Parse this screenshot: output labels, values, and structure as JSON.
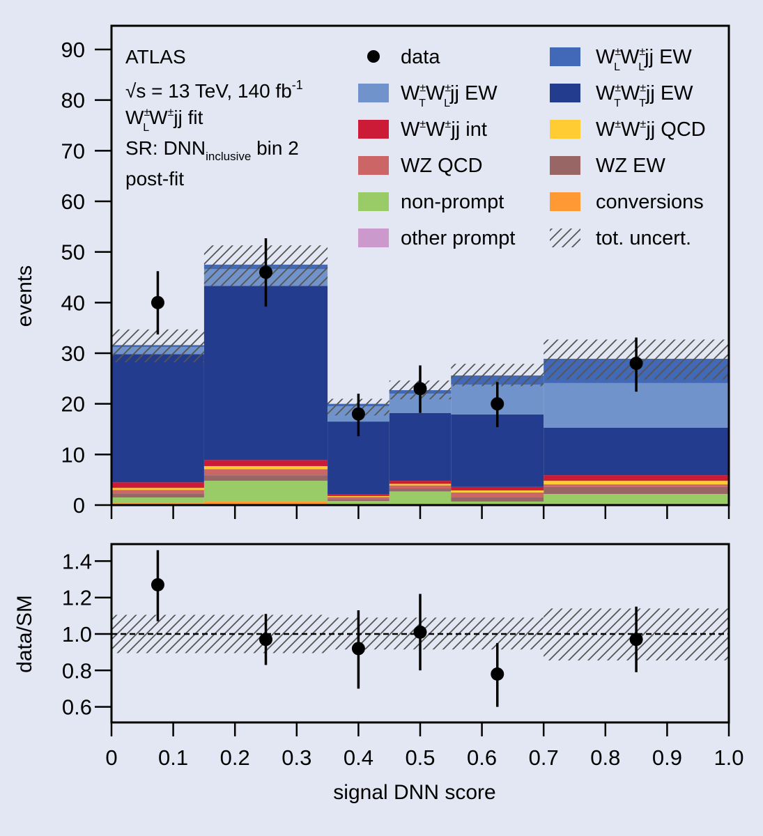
{
  "chart_data": {
    "type": "bar",
    "subtype": "stacked-histogram-with-ratio",
    "xlabel": "signal DNN score",
    "ylabel": "events",
    "ratio_ylabel": "data/SM",
    "xlim": [
      0,
      1.0
    ],
    "ylim": [
      0,
      90
    ],
    "ratio_ylim": [
      0.51,
      1.49
    ],
    "x_ticks": [
      "0",
      "0.1",
      "0.2",
      "0.3",
      "0.4",
      "0.5",
      "0.6",
      "0.7",
      "0.8",
      "0.9",
      "1.0"
    ],
    "y_ticks": [
      "0",
      "10",
      "20",
      "30",
      "40",
      "50",
      "60",
      "70",
      "80",
      "90"
    ],
    "ratio_y_ticks": [
      "0.6",
      "0.8",
      "1.0",
      "1.2",
      "1.4"
    ],
    "bin_edges": [
      0,
      0.15,
      0.35,
      0.45,
      0.55,
      0.7,
      1.0
    ],
    "annotations": {
      "experiment": "ATLAS",
      "energy": "√s = 13 TeV, 140 fb",
      "energy_sup": "-1",
      "fit_main": "W",
      "fit_sub1": "L",
      "fit_sup1": "±",
      "fit_rest": "W",
      "fit_sup2": "±",
      "fit_tail": "jj fit",
      "region_pre": "SR: DNN",
      "region_sub": "inclusive",
      "region_post": " bin 2",
      "stage": "post-fit"
    },
    "legend_position": "top-right",
    "series": [
      {
        "key": "other",
        "name": "other prompt",
        "color": "#cc99cc",
        "values": [
          0.1,
          0.1,
          0.05,
          0.05,
          0.05,
          0.1
        ]
      },
      {
        "key": "conv",
        "name": "conversions",
        "color": "#ff9933",
        "values": [
          0.3,
          0.6,
          0.15,
          0.15,
          0.15,
          0.2
        ]
      },
      {
        "key": "nonprompt",
        "name": "non-prompt",
        "color": "#99cc66",
        "values": [
          1.1,
          4.1,
          0.6,
          2.5,
          0.5,
          1.9
        ]
      },
      {
        "key": "wzew",
        "name": "WZ EW",
        "color": "#996666",
        "values": [
          0.8,
          1.1,
          0.4,
          0.6,
          0.9,
          1.4
        ]
      },
      {
        "key": "wzqcd",
        "name": "WZ QCD",
        "color": "#cc6666",
        "values": [
          0.7,
          1.2,
          0.4,
          0.6,
          0.9,
          0.5
        ]
      },
      {
        "key": "qcd",
        "name": "W±W±jj QCD",
        "color": "#ffcc33",
        "values": [
          0.4,
          0.6,
          0.2,
          0.3,
          0.4,
          0.7
        ]
      },
      {
        "key": "int",
        "name": "W±W±jj int",
        "color": "#cc1b36",
        "values": [
          1.1,
          1.2,
          0.4,
          0.6,
          0.7,
          1.1
        ]
      },
      {
        "key": "tt",
        "name": "W±TW±Tjj EW",
        "color": "#233c8e",
        "values": [
          25.3,
          34.4,
          14.3,
          13.4,
          14.3,
          9.4
        ]
      },
      {
        "key": "tl",
        "name": "W±TW±Ljj EW",
        "color": "#7093cc",
        "values": [
          1.4,
          3.3,
          3.0,
          3.8,
          5.9,
          8.8
        ]
      },
      {
        "key": "ll",
        "name": "W±LW±Ljj EW",
        "color": "#4169b8",
        "values": [
          0.4,
          0.9,
          0.5,
          0.7,
          1.8,
          4.8
        ]
      }
    ],
    "total_uncertainty": {
      "low": [
        28.2,
        43.3,
        17.7,
        20.9,
        23.5,
        24.8
      ],
      "high": [
        34.7,
        51.3,
        21.0,
        24.6,
        27.9,
        32.7
      ]
    },
    "data": {
      "x": [
        0.075,
        0.25,
        0.4,
        0.5,
        0.625,
        0.85
      ],
      "y": [
        40,
        46,
        18,
        23,
        20,
        28
      ],
      "err_low": [
        33.7,
        39.2,
        13.6,
        18.2,
        15.4,
        22.4
      ],
      "err_high": [
        46.2,
        52.7,
        22.0,
        27.6,
        24.3,
        33.1
      ]
    },
    "ratio": {
      "y": [
        1.27,
        0.97,
        0.92,
        1.01,
        0.78,
        0.97
      ],
      "err_low": [
        1.07,
        0.83,
        0.7,
        0.8,
        0.6,
        0.79
      ],
      "err_high": [
        1.46,
        1.11,
        1.13,
        1.22,
        0.95,
        1.15
      ],
      "unc_low": [
        0.895,
        0.895,
        0.915,
        0.915,
        0.915,
        0.855
      ],
      "unc_high": [
        1.105,
        1.105,
        1.09,
        1.09,
        1.09,
        1.14
      ]
    },
    "legend": {
      "col1": [
        {
          "kind": "marker",
          "label": "data"
        },
        {
          "kind": "box",
          "color": "#7093cc",
          "label_parts": [
            "W",
            "±",
            "T",
            "W",
            "±",
            "L",
            "jj EW"
          ]
        },
        {
          "kind": "box",
          "color": "#cc1b36",
          "label_plain": "W±W±jj int"
        },
        {
          "kind": "box",
          "color": "#cc6666",
          "label": "WZ QCD"
        },
        {
          "kind": "box",
          "color": "#99cc66",
          "label": "non-prompt"
        },
        {
          "kind": "box",
          "color": "#cc99cc",
          "label": "other prompt"
        }
      ],
      "col2": [
        {
          "kind": "box",
          "color": "#4169b8",
          "label_parts": [
            "W",
            "±",
            "L",
            "W",
            "±",
            "L",
            "jj EW"
          ]
        },
        {
          "kind": "box",
          "color": "#233c8e",
          "label_parts": [
            "W",
            "±",
            "T",
            "W",
            "±",
            "T",
            "jj EW"
          ]
        },
        {
          "kind": "box",
          "color": "#ffcc33",
          "label_plain": "W±W±jj QCD"
        },
        {
          "kind": "box",
          "color": "#996666",
          "label": "WZ EW"
        },
        {
          "kind": "box",
          "color": "#ff9933",
          "label": "conversions"
        },
        {
          "kind": "hatch",
          "label": "tot. uncert."
        }
      ]
    }
  }
}
